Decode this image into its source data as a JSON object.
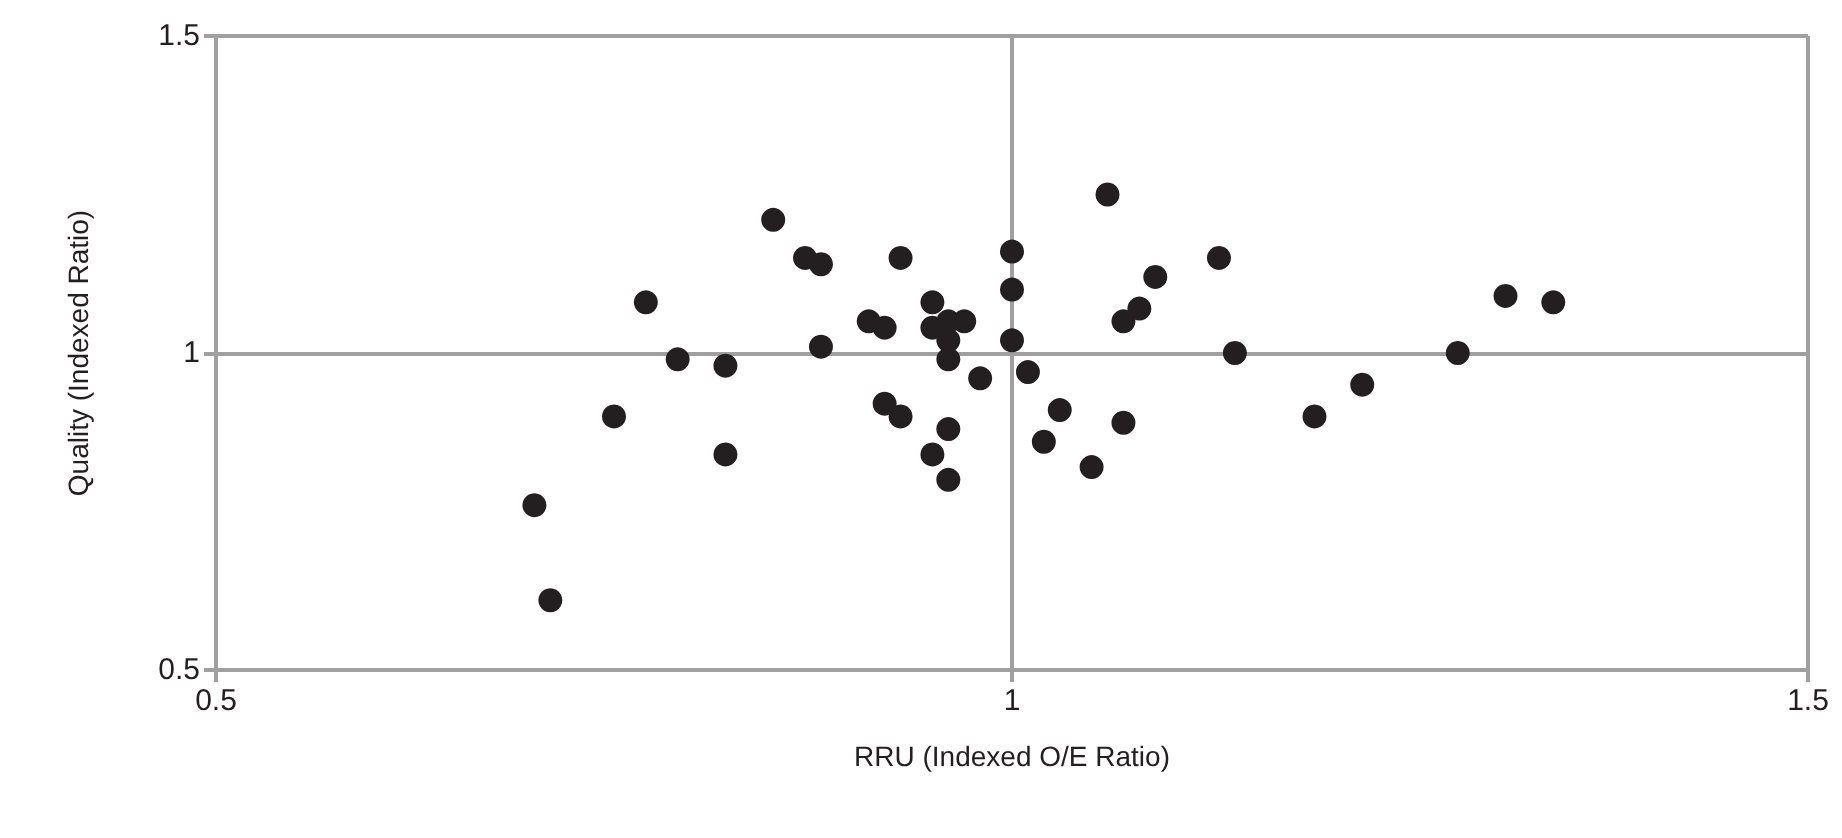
{
  "chart_data": {
    "type": "scatter",
    "xlabel": "RRU (Indexed O/E Ratio)",
    "ylabel": "Quality (Indexed Ratio)",
    "x": [
      0.7,
      0.71,
      0.75,
      0.77,
      0.79,
      0.82,
      0.82,
      0.85,
      0.87,
      0.88,
      0.88,
      0.91,
      0.92,
      0.92,
      0.93,
      0.93,
      0.95,
      0.95,
      0.96,
      0.97,
      0.96,
      0.96,
      0.95,
      0.96,
      0.96,
      0.98,
      1.0,
      1.0,
      1.0,
      1.01,
      1.02,
      1.03,
      1.05,
      1.06,
      1.07,
      1.08,
      1.07,
      1.09,
      1.13,
      1.14,
      1.19,
      1.22,
      1.28,
      1.31,
      1.34
    ],
    "series": [
      {
        "color": "#231f20",
        "values": [
          0.76,
          0.61,
          0.9,
          1.08,
          0.99,
          0.98,
          0.84,
          1.21,
          1.15,
          1.14,
          1.01,
          1.05,
          1.04,
          0.92,
          1.15,
          0.9,
          1.08,
          1.04,
          1.05,
          1.05,
          1.02,
          0.99,
          0.84,
          0.88,
          0.8,
          0.96,
          1.02,
          1.1,
          1.16,
          0.97,
          0.86,
          0.91,
          0.82,
          1.25,
          1.05,
          1.07,
          0.89,
          1.12,
          1.15,
          1.0,
          0.9,
          0.95,
          1.0,
          1.09,
          1.08
        ]
      }
    ],
    "xlim": [
      0.5,
      1.5
    ],
    "ylim": [
      0.5,
      1.5
    ],
    "xticks": [
      0.5,
      1,
      1.5
    ],
    "yticks": [
      0.5,
      1,
      1.5
    ],
    "grid": true,
    "marker": "circle"
  }
}
